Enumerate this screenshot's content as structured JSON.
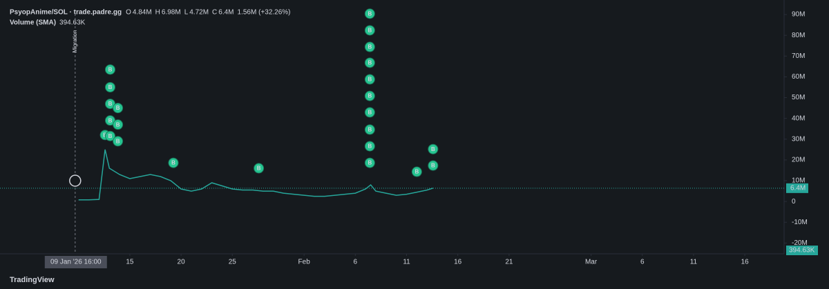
{
  "chart_data": {
    "type": "line",
    "symbol": "PsyopAnime/SOL · trade.padre.gg",
    "ohlc": [
      {
        "label": "O",
        "value": "4.84M"
      },
      {
        "label": "H",
        "value": "6.98M"
      },
      {
        "label": "L",
        "value": "4.72M"
      },
      {
        "label": "C",
        "value": "6.4M"
      }
    ],
    "change": "1.56M (+32.26%)",
    "volume_label": "Volume (SMA)",
    "volume_value": "394.63K",
    "migration_label": "Migration",
    "migration_time": {
      "value": "2026-01-09T16:00",
      "label": "09 Jan '26  16:00"
    },
    "footer": "TradingView",
    "color": "#26a69a",
    "grid": false,
    "x": [
      "2026-01-10",
      "2026-01-11",
      "2026-01-12",
      "2026-01-12T14:00",
      "2026-01-13",
      "2026-01-14",
      "2026-01-15",
      "2026-01-16",
      "2026-01-17",
      "2026-01-18",
      "2026-01-19",
      "2026-01-20",
      "2026-01-21",
      "2026-01-22",
      "2026-01-23",
      "2026-01-24",
      "2026-01-25",
      "2026-01-26",
      "2026-01-27",
      "2026-01-28",
      "2026-01-29",
      "2026-01-30",
      "2026-01-31",
      "2026-02-01",
      "2026-02-02",
      "2026-02-03",
      "2026-02-04",
      "2026-02-05",
      "2026-02-06",
      "2026-02-07",
      "2026-02-07T12:00",
      "2026-02-08",
      "2026-02-09",
      "2026-02-10",
      "2026-02-11",
      "2026-02-12",
      "2026-02-13",
      "2026-02-13T14:00"
    ],
    "values": [
      800000,
      800000,
      1000000,
      25000000,
      16000000,
      13000000,
      11000000,
      12000000,
      13000000,
      12000000,
      10000000,
      6000000,
      5000000,
      6000000,
      9000000,
      7500000,
      6000000,
      5500000,
      5500000,
      5000000,
      5000000,
      4000000,
      3500000,
      3000000,
      2500000,
      2500000,
      3000000,
      3500000,
      4000000,
      6000000,
      8000000,
      5000000,
      4000000,
      3000000,
      3500000,
      4500000,
      5500000,
      6400000
    ],
    "last_price": {
      "value": 6400000,
      "label": "6.4M"
    },
    "markers": {
      "label": "B",
      "x": [
        "2026-01-12T14:00",
        "2026-01-13T02:00",
        "2026-01-13T02:00",
        "2026-01-13T02:00",
        "2026-01-13T02:00",
        "2026-01-13T02:00",
        "2026-01-13T20:00",
        "2026-01-13T20:00",
        "2026-01-13T20:00",
        "2026-01-19T06:00",
        "2026-01-27T14:00",
        "2026-02-07T10:00",
        "2026-02-07T10:00",
        "2026-02-07T10:00",
        "2026-02-07T10:00",
        "2026-02-07T10:00",
        "2026-02-07T10:00",
        "2026-02-07T10:00",
        "2026-02-07T10:00",
        "2026-02-07T10:00",
        "2026-02-07T10:00",
        "2026-02-12",
        "2026-02-13T14:00",
        "2026-02-13T14:00"
      ],
      "values": [
        32000000,
        63500000,
        55000000,
        47000000,
        39000000,
        31500000,
        45000000,
        37000000,
        29000000,
        18600000,
        16000000,
        90400000,
        82400000,
        74400000,
        66800000,
        58800000,
        50800000,
        42900000,
        34600000,
        26600000,
        18600000,
        14300000,
        25200000,
        17300000
      ]
    },
    "xlim": [
      "2026-01-02T08:00",
      "2026-03-19T20:00"
    ],
    "xticks": [
      {
        "value": "2026-01-15",
        "label": "15"
      },
      {
        "value": "2026-01-20",
        "label": "20"
      },
      {
        "value": "2026-01-25",
        "label": "25"
      },
      {
        "value": "2026-02-01",
        "label": "Feb"
      },
      {
        "value": "2026-02-06",
        "label": "6"
      },
      {
        "value": "2026-02-11",
        "label": "11"
      },
      {
        "value": "2026-02-16",
        "label": "16"
      },
      {
        "value": "2026-02-21",
        "label": "21"
      },
      {
        "value": "2026-03-01",
        "label": "Mar"
      },
      {
        "value": "2026-03-06",
        "label": "6"
      },
      {
        "value": "2026-03-11",
        "label": "11"
      },
      {
        "value": "2026-03-16",
        "label": "16"
      }
    ],
    "ylim": [
      -25200000,
      97000000
    ],
    "yticks": [
      {
        "value": 90000000,
        "label": "90M"
      },
      {
        "value": 80000000,
        "label": "80M"
      },
      {
        "value": 70000000,
        "label": "70M"
      },
      {
        "value": 60000000,
        "label": "60M"
      },
      {
        "value": 50000000,
        "label": "50M"
      },
      {
        "value": 40000000,
        "label": "40M"
      },
      {
        "value": 30000000,
        "label": "30M"
      },
      {
        "value": 20000000,
        "label": "20M"
      },
      {
        "value": 10000000,
        "label": "10M"
      },
      0,
      {
        "value": -10000000,
        "label": "-10M"
      },
      {
        "value": -20000000,
        "label": "-20M"
      }
    ]
  }
}
